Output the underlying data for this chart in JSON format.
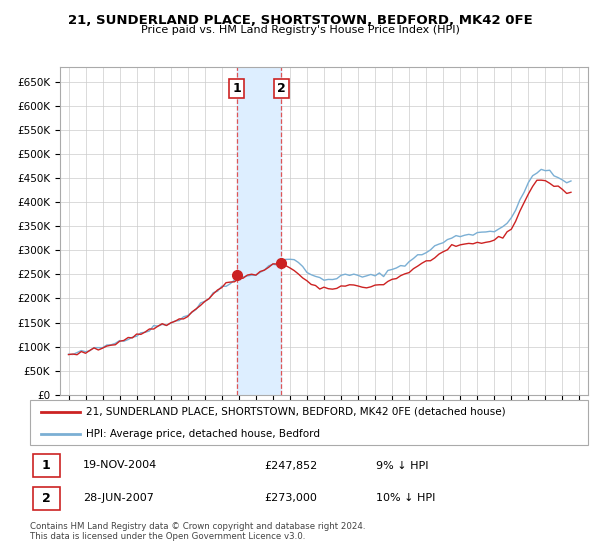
{
  "title": "21, SUNDERLAND PLACE, SHORTSTOWN, BEDFORD, MK42 0FE",
  "subtitle": "Price paid vs. HM Land Registry's House Price Index (HPI)",
  "hpi_color": "#7bafd4",
  "price_color": "#cc2222",
  "highlight_color": "#ddeeff",
  "sale1_x": 2004.88,
  "sale1_y": 247852,
  "sale2_x": 2007.49,
  "sale2_y": 273000,
  "legend1": "21, SUNDERLAND PLACE, SHORTSTOWN, BEDFORD, MK42 0FE (detached house)",
  "legend2": "HPI: Average price, detached house, Bedford",
  "table_row1": [
    "1",
    "19-NOV-2004",
    "£247,852",
    "9% ↓ HPI"
  ],
  "table_row2": [
    "2",
    "28-JUN-2007",
    "£273,000",
    "10% ↓ HPI"
  ],
  "footnote": "Contains HM Land Registry data © Crown copyright and database right 2024.\nThis data is licensed under the Open Government Licence v3.0.",
  "ylim": [
    0,
    680000
  ],
  "yticks": [
    0,
    50000,
    100000,
    150000,
    200000,
    250000,
    300000,
    350000,
    400000,
    450000,
    500000,
    550000,
    600000,
    650000
  ],
  "xlim_start": 1994.5,
  "xlim_end": 2025.5,
  "years_hpi": [
    1995,
    1995.25,
    1995.5,
    1995.75,
    1996,
    1996.25,
    1996.5,
    1996.75,
    1997,
    1997.25,
    1997.5,
    1997.75,
    1998,
    1998.25,
    1998.5,
    1998.75,
    1999,
    1999.25,
    1999.5,
    1999.75,
    2000,
    2000.25,
    2000.5,
    2000.75,
    2001,
    2001.25,
    2001.5,
    2001.75,
    2002,
    2002.25,
    2002.5,
    2002.75,
    2003,
    2003.25,
    2003.5,
    2003.75,
    2004,
    2004.25,
    2004.5,
    2004.75,
    2005,
    2005.25,
    2005.5,
    2005.75,
    2006,
    2006.25,
    2006.5,
    2006.75,
    2007,
    2007.25,
    2007.5,
    2007.75,
    2008,
    2008.25,
    2008.5,
    2008.75,
    2009,
    2009.25,
    2009.5,
    2009.75,
    2010,
    2010.25,
    2010.5,
    2010.75,
    2011,
    2011.25,
    2011.5,
    2011.75,
    2012,
    2012.25,
    2012.5,
    2012.75,
    2013,
    2013.25,
    2013.5,
    2013.75,
    2014,
    2014.25,
    2014.5,
    2014.75,
    2015,
    2015.25,
    2015.5,
    2015.75,
    2016,
    2016.25,
    2016.5,
    2016.75,
    2017,
    2017.25,
    2017.5,
    2017.75,
    2018,
    2018.25,
    2018.5,
    2018.75,
    2019,
    2019.25,
    2019.5,
    2019.75,
    2020,
    2020.25,
    2020.5,
    2020.75,
    2021,
    2021.25,
    2021.5,
    2021.75,
    2022,
    2022.25,
    2022.5,
    2022.75,
    2023,
    2023.25,
    2023.5,
    2023.75,
    2024,
    2024.25,
    2024.5
  ],
  "hpi_vals": [
    83000,
    84000,
    86000,
    88000,
    90000,
    92000,
    94000,
    96000,
    99000,
    102000,
    105000,
    108000,
    112000,
    116000,
    119000,
    121000,
    124000,
    128000,
    132000,
    136000,
    140000,
    143000,
    146000,
    148000,
    150000,
    153000,
    157000,
    161000,
    166000,
    172000,
    179000,
    186000,
    194000,
    202000,
    210000,
    218000,
    225000,
    230000,
    234000,
    238000,
    241000,
    244000,
    247000,
    249000,
    252000,
    256000,
    260000,
    265000,
    270000,
    274000,
    278000,
    282000,
    283000,
    279000,
    272000,
    264000,
    256000,
    250000,
    245000,
    241000,
    239000,
    240000,
    242000,
    244000,
    246000,
    247000,
    248000,
    248000,
    247000,
    246000,
    246000,
    246000,
    247000,
    249000,
    252000,
    256000,
    260000,
    264000,
    268000,
    272000,
    277000,
    282000,
    287000,
    292000,
    297000,
    302000,
    307000,
    312000,
    317000,
    321000,
    325000,
    328000,
    330000,
    332000,
    334000,
    335000,
    336000,
    337000,
    338000,
    340000,
    342000,
    345000,
    350000,
    358000,
    368000,
    382000,
    400000,
    420000,
    440000,
    455000,
    465000,
    468000,
    465000,
    460000,
    455000,
    450000,
    446000,
    443000,
    441000
  ],
  "prop_vals": [
    82000,
    83000,
    85000,
    87000,
    89000,
    91000,
    93000,
    95000,
    98000,
    101000,
    104000,
    107000,
    111000,
    115000,
    118000,
    120000,
    123000,
    127000,
    131000,
    135000,
    139000,
    142000,
    145000,
    147000,
    149000,
    152000,
    156000,
    160000,
    165000,
    171000,
    178000,
    185000,
    193000,
    201000,
    209000,
    217000,
    224000,
    229000,
    233000,
    237000,
    240000,
    244000,
    247000,
    248000,
    250000,
    254000,
    258000,
    263000,
    268000,
    272000,
    273000,
    270000,
    265000,
    258000,
    250000,
    242000,
    235000,
    229000,
    224000,
    220000,
    218000,
    219000,
    221000,
    223000,
    225000,
    226000,
    227000,
    227000,
    226000,
    225000,
    225000,
    225000,
    226000,
    228000,
    231000,
    235000,
    239000,
    243000,
    247000,
    251000,
    256000,
    261000,
    266000,
    271000,
    276000,
    281000,
    286000,
    291000,
    296000,
    300000,
    304000,
    307000,
    309000,
    311000,
    313000,
    314000,
    315000,
    316000,
    317000,
    319000,
    321000,
    324000,
    329000,
    337000,
    347000,
    361000,
    379000,
    399000,
    419000,
    434000,
    444000,
    447000,
    444000,
    439000,
    434000,
    429000,
    425000,
    422000,
    420000
  ]
}
